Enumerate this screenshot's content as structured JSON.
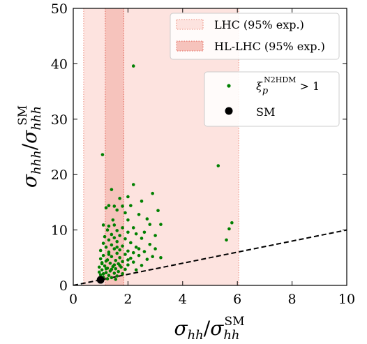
{
  "chart_data": {
    "type": "scatter",
    "x_axis": {
      "range": [
        0,
        10
      ],
      "ticks": [
        0,
        2,
        4,
        6,
        8,
        10
      ],
      "label_base": "σ",
      "label_sub": "hh",
      "label_den_base": "σ",
      "label_den_sub": "hh",
      "label_den_sup": "SM"
    },
    "y_axis": {
      "range": [
        0,
        50
      ],
      "ticks": [
        0,
        10,
        20,
        30,
        40,
        50
      ],
      "label_base": "σ",
      "label_sub": "hhh",
      "label_den_base": "σ",
      "label_den_sub": "hhh",
      "label_den_sup": "SM"
    },
    "bands": [
      {
        "name": "LHC (95% exp.)",
        "x_range": [
          0.38,
          6.05
        ],
        "fill": "#fde3df",
        "edge": "#ec8c7c",
        "edge_style": "dotted"
      },
      {
        "name": "HL-LHC (95% exp.)",
        "x_range": [
          1.17,
          1.85
        ],
        "fill": "#f6c3bc",
        "edge": "#e3665a",
        "edge_style": "dotted"
      }
    ],
    "reference_line": {
      "style": "dashed",
      "color": "#000000",
      "points": [
        [
          0,
          0
        ],
        [
          10,
          10
        ]
      ]
    },
    "series": [
      {
        "name_base": "ξ",
        "name_sub": "p",
        "name_sup": "N2HDM",
        "name_rel": "> 1",
        "color": "#008000",
        "points": [
          [
            2.2,
            39.6
          ],
          [
            1.07,
            23.6
          ],
          [
            5.3,
            21.6
          ],
          [
            1.4,
            17.3
          ],
          [
            2.2,
            18.2
          ],
          [
            2.9,
            16.6
          ],
          [
            1.7,
            15.7
          ],
          [
            2.0,
            16.0
          ],
          [
            2.5,
            15.2
          ],
          [
            1.3,
            14.4
          ],
          [
            1.5,
            14.3
          ],
          [
            1.8,
            14.3
          ],
          [
            1.2,
            14.0
          ],
          [
            2.1,
            14.4
          ],
          [
            1.6,
            13.6
          ],
          [
            3.1,
            13.5
          ],
          [
            1.9,
            13.1
          ],
          [
            2.4,
            12.8
          ],
          [
            5.8,
            11.3
          ],
          [
            2.7,
            12.0
          ],
          [
            2.0,
            11.8
          ],
          [
            1.45,
            11.8
          ],
          [
            2.8,
            11.0
          ],
          [
            3.2,
            11.0
          ],
          [
            1.1,
            10.9
          ],
          [
            1.3,
            10.7
          ],
          [
            1.5,
            10.9
          ],
          [
            1.8,
            10.4
          ],
          [
            2.2,
            10.4
          ],
          [
            5.7,
            10.2
          ],
          [
            1.25,
            10.0
          ],
          [
            1.6,
            9.9
          ],
          [
            2.0,
            9.6
          ],
          [
            2.3,
            9.3
          ],
          [
            2.6,
            9.6
          ],
          [
            1.4,
            9.2
          ],
          [
            1.7,
            9.0
          ],
          [
            3.0,
            9.0
          ],
          [
            1.15,
            8.8
          ],
          [
            1.5,
            8.6
          ],
          [
            1.9,
            8.4
          ],
          [
            2.5,
            8.5
          ],
          [
            5.6,
            8.2
          ],
          [
            1.3,
            8.2
          ],
          [
            1.6,
            7.9
          ],
          [
            2.1,
            7.7
          ],
          [
            2.8,
            7.4
          ],
          [
            1.1,
            7.6
          ],
          [
            1.4,
            7.3
          ],
          [
            1.8,
            7.1
          ],
          [
            2.3,
            6.9
          ],
          [
            3.0,
            6.6
          ],
          [
            1.2,
            6.9
          ],
          [
            1.5,
            6.6
          ],
          [
            1.7,
            6.4
          ],
          [
            2.0,
            6.2
          ],
          [
            2.6,
            6.1
          ],
          [
            1.0,
            6.3
          ],
          [
            1.3,
            6.0
          ],
          [
            1.6,
            5.8
          ],
          [
            1.9,
            5.6
          ],
          [
            2.4,
            5.4
          ],
          [
            2.9,
            5.2
          ],
          [
            3.2,
            5.0
          ],
          [
            1.1,
            5.4
          ],
          [
            1.4,
            5.2
          ],
          [
            1.7,
            5.0
          ],
          [
            2.1,
            4.9
          ],
          [
            2.7,
            4.7
          ],
          [
            1.0,
            4.8
          ],
          [
            1.25,
            4.6
          ],
          [
            1.55,
            4.5
          ],
          [
            1.8,
            4.3
          ],
          [
            2.2,
            4.2
          ],
          [
            1.05,
            4.1
          ],
          [
            1.35,
            4.0
          ],
          [
            1.65,
            3.9
          ],
          [
            2.0,
            3.7
          ],
          [
            2.5,
            3.6
          ],
          [
            1.15,
            3.5
          ],
          [
            1.45,
            3.4
          ],
          [
            1.75,
            3.3
          ],
          [
            0.95,
            3.3
          ],
          [
            1.25,
            3.1
          ],
          [
            1.55,
            3.0
          ],
          [
            1.9,
            2.9
          ],
          [
            2.3,
            2.8
          ],
          [
            1.05,
            2.8
          ],
          [
            1.35,
            2.6
          ],
          [
            1.65,
            2.5
          ],
          [
            0.95,
            2.4
          ],
          [
            1.2,
            2.3
          ],
          [
            1.5,
            2.2
          ],
          [
            1.8,
            2.1
          ],
          [
            1.0,
            1.9
          ],
          [
            1.3,
            1.8
          ],
          [
            1.6,
            1.7
          ],
          [
            1.1,
            1.5
          ],
          [
            1.4,
            1.4
          ],
          [
            0.98,
            1.3
          ],
          [
            1.25,
            1.2
          ],
          [
            1.55,
            1.1
          ],
          [
            1.05,
            3.9
          ],
          [
            1.2,
            4.4
          ],
          [
            1.5,
            3.7
          ],
          [
            1.3,
            5.6
          ],
          [
            1.6,
            6.9
          ],
          [
            2.2,
            5.9
          ],
          [
            1.1,
            2.1
          ],
          [
            1.4,
            2.9
          ],
          [
            1.7,
            3.6
          ],
          [
            2.0,
            4.6
          ],
          [
            2.4,
            6.6
          ],
          [
            1.2,
            3.0
          ]
        ]
      },
      {
        "name": "SM",
        "color": "#000000",
        "points": [
          [
            1.0,
            1.0
          ]
        ]
      }
    ],
    "legend_placement": "top-right"
  }
}
